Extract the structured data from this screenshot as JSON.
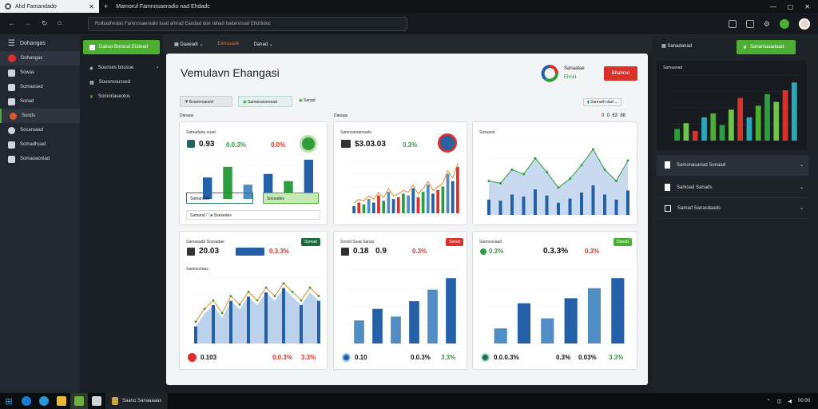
{
  "browser": {
    "tab_active": "Ahd Famandado",
    "tab_second": "Mamoruf Famnosaeradio nad Ehdadc",
    "address": "Rolbadhedas Famnosaeradio tuad ahtrad Eaodad doe rahad hadenosad Ehdrtidoc"
  },
  "left_nav": {
    "title": "Dohangas",
    "items": [
      "Sowas",
      "Somaosed",
      "Sonad",
      "Sonds",
      "Socaroaad",
      "Somadhuad",
      "Somaoaoniad"
    ]
  },
  "sub_nav": {
    "button": "Dakuo Bonesd Eloinad",
    "items": [
      "Sounses bousue",
      "Sousnsoussed",
      "Somoriaseotos"
    ]
  },
  "top_strip": {
    "items": [
      "Daaeadi",
      "Eansuade",
      "Danad"
    ]
  },
  "main": {
    "title": "Vemulavn Ehangasi",
    "brand_name": "Sanaatae",
    "brand_sub": "Ehnid",
    "alert_button": "Bhahroo",
    "filters": [
      "Bsaneroaned",
      "Samaoanomead",
      "Sonad"
    ],
    "filter_right": "Sannarh dad",
    "section_left": "Danaas",
    "section_mid": "Danaas",
    "pager": "0  0  63  88"
  },
  "panels": {
    "p1": {
      "title": "Samadana ouad",
      "value": "0.93",
      "change1": "0.0.3%",
      "change2": "0.0%",
      "box1": "Samandad",
      "box2": "Sossades",
      "footer": "Samand",
      "footer2": "Soesedes"
    },
    "p2": {
      "title": "Samosarsanoado",
      "value": "$3.03.03",
      "change1": "0.3%"
    },
    "p3": {
      "title": "Sossand"
    },
    "p4": {
      "title": "Samaaadd Sossadae",
      "value": "20.03",
      "change1": "0.3.3%",
      "badge": "Sumad",
      "sub": "Samosotaas",
      "footer1": "0.103",
      "footer2": "0.0.3%",
      "footer3": "3.3%"
    },
    "p5": {
      "title": "Sossd Ssaa Sanas",
      "value": "0.18",
      "value2": "0.9",
      "change1": "0.3%",
      "badge": "Sanad",
      "footer1": "0.10",
      "footer2": "0.0.3%",
      "footer3": "3.3%"
    },
    "p6": {
      "title": "Saonosoaad",
      "value": "0.3%",
      "value2": "0.3.3%",
      "value3": "0.3%",
      "badge": "Danad",
      "footer1": "0.0.0.3%",
      "footer2": "0.3%",
      "footer3": "0.03%",
      "footer4": "3.3%"
    }
  },
  "right_panel": {
    "button": "Sanamaaadaad",
    "label": "Sanadanad",
    "chart_title": "Samaanad",
    "items": [
      "Samonasanad Sonaad",
      "Samoad Sanads",
      "Samad Sanasdaads"
    ]
  },
  "taskbar": {
    "app_label": "Saano Sanaaaaas",
    "clock": "00:00"
  },
  "colors": {
    "accent_green": "#4caf32",
    "accent_red": "#d9312b",
    "bar_blue": "#2460a7",
    "bar_light": "#4f8dc4"
  },
  "chart_data": [
    {
      "type": "bar",
      "series": [
        {
          "values": [
            12,
            18,
            8,
            14,
            10,
            22
          ]
        }
      ]
    },
    {
      "type": "bar",
      "series": [
        {
          "values": [
            4,
            6,
            5,
            8,
            6,
            10,
            7,
            12,
            8,
            9,
            11,
            10,
            14,
            9,
            12,
            16,
            11,
            13,
            15,
            22,
            18,
            26
          ]
        }
      ]
    },
    {
      "type": "line",
      "series": [
        {
          "values": [
            30,
            28,
            40,
            36,
            50,
            38,
            24,
            32,
            44,
            58,
            40,
            30,
            48
          ]
        }
      ]
    },
    {
      "type": "area",
      "series": [
        {
          "values": [
            8,
            14,
            18,
            12,
            20,
            16,
            22,
            18,
            24,
            20,
            26,
            22,
            18,
            24,
            20
          ]
        }
      ]
    },
    {
      "type": "bar",
      "series": [
        {
          "values": [
            12,
            18,
            14,
            22,
            28,
            34
          ]
        }
      ]
    },
    {
      "type": "bar",
      "series": [
        {
          "values": [
            6,
            16,
            10,
            18,
            22,
            26
          ]
        }
      ]
    },
    {
      "type": "bar",
      "series": [
        {
          "values": [
            6,
            9,
            5,
            12,
            14,
            8,
            16,
            22,
            12,
            18,
            24,
            20,
            26,
            30
          ]
        }
      ]
    }
  ]
}
